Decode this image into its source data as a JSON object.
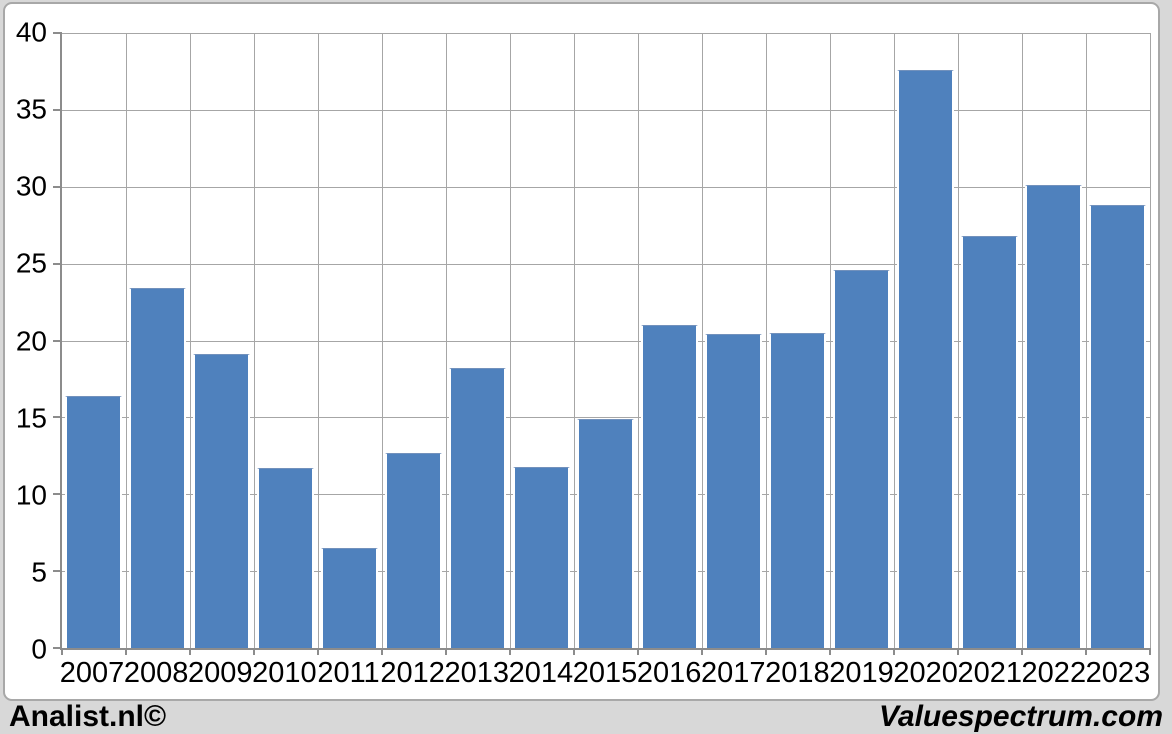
{
  "chart_data": {
    "type": "bar",
    "title": "",
    "xlabel": "",
    "ylabel": "",
    "categories": [
      "2007",
      "2008",
      "2009",
      "2010",
      "2011",
      "2012",
      "2013",
      "2014",
      "2015",
      "2016",
      "2017",
      "2018",
      "2019",
      "2020",
      "2021",
      "2022",
      "2023"
    ],
    "values": [
      16.4,
      23.4,
      19.1,
      11.7,
      6.5,
      12.7,
      18.2,
      11.8,
      14.9,
      21.0,
      20.4,
      20.5,
      24.6,
      37.6,
      26.8,
      30.1,
      28.8
    ],
    "ylim": [
      0,
      40
    ],
    "yticks": [
      0,
      5,
      10,
      15,
      20,
      25,
      30,
      35,
      40
    ],
    "grid": "both",
    "legend_position": "none",
    "bar_color": "#4f81bd",
    "bar_border_color": "#ffffff",
    "gridline_color": "#a6a6a6",
    "axis_color": "#8c8c8c"
  },
  "footer": {
    "left_credit": "Analist.nl©",
    "right_credit": "Valuespectrum.com"
  }
}
